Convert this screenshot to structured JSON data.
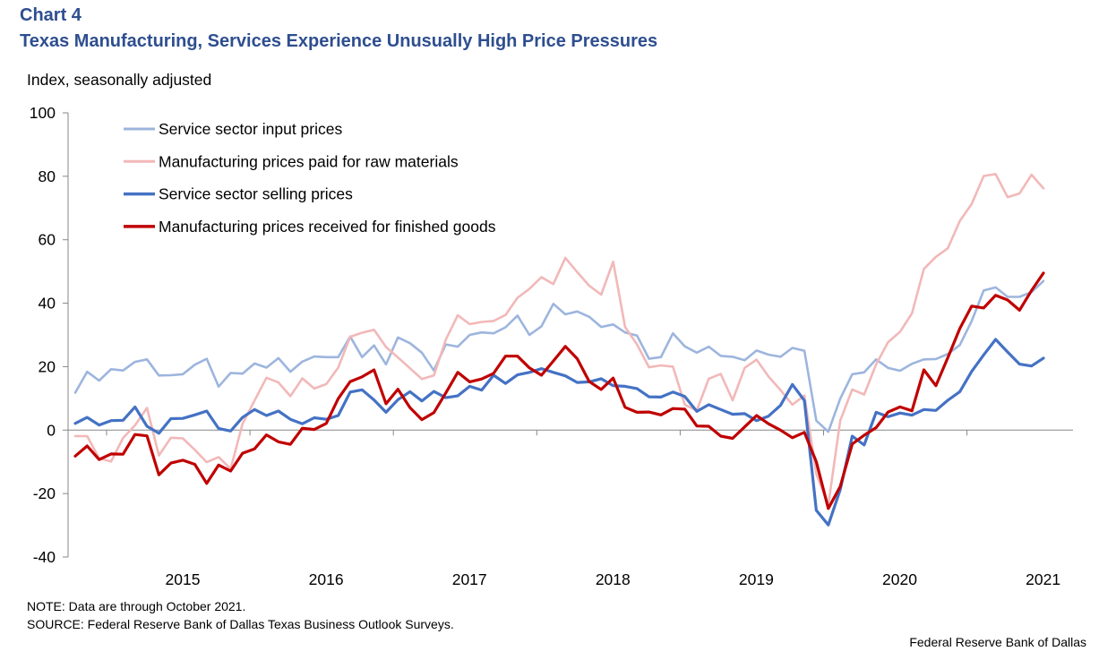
{
  "header": {
    "chart_label": "Chart 4",
    "title": "Texas Manufacturing, Services Experience Unusually High Price Pressures",
    "unit_label": "Index, seasonally adjusted"
  },
  "footer": {
    "note": "NOTE:  Data are through October 2021.",
    "source": "SOURCE:  Federal Reserve Bank of Dallas Texas Business Outlook Surveys.",
    "credit": "Federal Reserve Bank of Dallas"
  },
  "chart_data": {
    "type": "line",
    "title": "Texas Manufacturing, Services Experience Unusually High Price Pressures",
    "ylabel": "Index, seasonally adjusted",
    "xlabel": "",
    "ylim": [
      -40,
      100
    ],
    "yticks": [
      -40,
      -20,
      0,
      20,
      40,
      60,
      80,
      100
    ],
    "x_start": "2014-03",
    "x_end": "2021-10",
    "xtick_labels": [
      "2015",
      "2016",
      "2017",
      "2018",
      "2019",
      "2020",
      "2021"
    ],
    "grid": false,
    "legend_position": "top-left",
    "series": [
      {
        "name": "Service sector input prices",
        "color": "#9db5de",
        "values": [
          11.8,
          18.4,
          15.6,
          19.2,
          18.8,
          21.5,
          22.3,
          17.2,
          17.3,
          17.6,
          20.6,
          22.5,
          13.7,
          18.0,
          17.8,
          21.0,
          19.7,
          22.7,
          18.4,
          21.6,
          23.2,
          23.0,
          23.0,
          29.5,
          23.0,
          26.7,
          20.7,
          29.2,
          27.4,
          24.4,
          18.8,
          27.0,
          26.3,
          30.0,
          30.8,
          30.5,
          32.4,
          36.1,
          30.0,
          32.7,
          39.8,
          36.5,
          37.4,
          35.7,
          32.5,
          33.3,
          30.8,
          29.8,
          22.5,
          23.0,
          30.5,
          26.4,
          24.4,
          26.3,
          23.4,
          23.1,
          22.0,
          25.1,
          23.8,
          23.1,
          25.9,
          25.0,
          3.0,
          -0.5,
          9.9,
          17.6,
          18.2,
          22.3,
          19.6,
          18.7,
          20.9,
          22.3,
          22.4,
          24.0,
          26.8,
          34.4,
          44.0,
          45.0,
          42.0,
          42.0,
          43.5,
          47.0
        ]
      },
      {
        "name": "Manufacturing prices paid for raw materials",
        "color": "#f2b8b8",
        "values": [
          -1.9,
          -1.9,
          -8.9,
          -9.9,
          -2.5,
          1.5,
          7.0,
          -8.0,
          -2.4,
          -2.6,
          -6.2,
          -10.1,
          -8.5,
          -12.2,
          2.0,
          9.3,
          16.5,
          15.0,
          10.7,
          16.3,
          13.1,
          14.5,
          19.7,
          29.4,
          30.7,
          31.6,
          26.2,
          22.9,
          19.5,
          16.1,
          17.2,
          28.5,
          36.2,
          33.4,
          34.1,
          34.4,
          36.3,
          41.7,
          44.5,
          48.2,
          46.0,
          54.3,
          49.8,
          45.5,
          42.7,
          53.1,
          32.5,
          27.0,
          19.8,
          20.4,
          20.0,
          8.0,
          6.2,
          16.2,
          17.7,
          9.4,
          19.6,
          22.2,
          16.9,
          12.6,
          8.0,
          10.9,
          -13.8,
          -23.6,
          3.0,
          12.8,
          11.2,
          20.7,
          27.7,
          31.0,
          36.8,
          50.8,
          54.6,
          57.3,
          65.9,
          71.3,
          80.1,
          80.7,
          73.4,
          74.6,
          80.5,
          76.2
        ]
      },
      {
        "name": "Service sector selling prices",
        "color": "#4472c4",
        "values": [
          2.1,
          4.0,
          1.6,
          3.0,
          3.1,
          7.3,
          1.2,
          -1.0,
          3.6,
          3.7,
          4.8,
          6.0,
          0.5,
          -0.3,
          4.0,
          6.5,
          4.6,
          6.0,
          3.4,
          2.0,
          3.9,
          3.4,
          4.6,
          12.0,
          12.7,
          9.5,
          5.6,
          9.6,
          12.1,
          9.2,
          12.2,
          10.2,
          10.8,
          13.8,
          12.6,
          17.3,
          14.7,
          17.4,
          18.2,
          19.4,
          18.2,
          17.1,
          15.0,
          15.2,
          16.2,
          14.0,
          13.8,
          13.1,
          10.5,
          10.4,
          12.0,
          10.6,
          5.9,
          8.0,
          6.5,
          5.0,
          5.2,
          3.0,
          4.4,
          7.8,
          14.4,
          9.3,
          -25.3,
          -29.9,
          -18.8,
          -1.9,
          -4.7,
          5.6,
          4.2,
          5.4,
          4.7,
          6.5,
          6.2,
          9.4,
          12.1,
          18.5,
          23.7,
          28.6,
          24.6,
          20.8,
          20.2,
          22.7
        ]
      },
      {
        "name": "Manufacturing prices received for finished goods",
        "color": "#c00000",
        "values": [
          -8.2,
          -5.0,
          -9.3,
          -7.5,
          -7.6,
          -1.4,
          -1.8,
          -14.1,
          -10.4,
          -9.5,
          -10.8,
          -16.8,
          -11.0,
          -12.9,
          -7.3,
          -5.9,
          -1.5,
          -3.7,
          -4.5,
          0.6,
          0.2,
          2.1,
          9.9,
          15.3,
          16.8,
          19.0,
          8.3,
          12.9,
          7.1,
          3.3,
          5.5,
          11.7,
          18.2,
          15.2,
          16.1,
          17.9,
          23.3,
          23.3,
          19.6,
          17.3,
          21.8,
          26.4,
          22.5,
          15.3,
          12.8,
          16.4,
          7.2,
          5.6,
          5.7,
          4.8,
          6.8,
          6.6,
          1.3,
          1.2,
          -1.9,
          -2.6,
          1.0,
          4.6,
          2.0,
          0.0,
          -2.4,
          -0.7,
          -10.0,
          -24.7,
          -17.8,
          -4.4,
          -1.6,
          0.8,
          5.7,
          7.3,
          6.1,
          19.0,
          14.0,
          22.8,
          32.0,
          39.1,
          38.5,
          42.5,
          41.0,
          37.8,
          44.0,
          49.5
        ]
      }
    ]
  }
}
